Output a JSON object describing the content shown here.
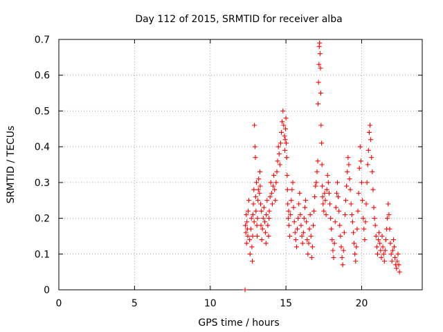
{
  "chart_data": {
    "type": "scatter",
    "title": "Day 112 of 2015, SRMTID for receiver alba",
    "xlabel": "GPS time / hours",
    "ylabel": "SRMTID / TECUs",
    "xlim": [
      0,
      24
    ],
    "ylim": [
      0,
      0.7
    ],
    "xticks": [
      0,
      5,
      10,
      15,
      20
    ],
    "xtick_labels": [
      "0",
      "5",
      "10",
      "15",
      "20"
    ],
    "yticks": [
      0,
      0.1,
      0.2,
      0.3,
      0.4,
      0.5,
      0.6,
      0.7
    ],
    "ytick_labels": [
      "0",
      "0.1",
      "0.2",
      "0.3",
      "0.4",
      "0.5",
      "0.6",
      "0.7"
    ],
    "grid": true,
    "marker": "+",
    "series": [
      {
        "name": "SRMTID",
        "color": "#ff0000",
        "x": [
          12.3,
          12.32,
          12.35,
          12.38,
          12.4,
          12.42,
          12.45,
          12.48,
          12.5,
          12.55,
          12.6,
          12.63,
          12.68,
          12.72,
          12.75,
          12.78,
          12.8,
          12.82,
          12.85,
          12.88,
          12.9,
          12.92,
          12.95,
          12.98,
          13.0,
          13.02,
          13.05,
          13.08,
          13.1,
          13.12,
          13.15,
          13.18,
          13.2,
          13.25,
          13.28,
          13.3,
          13.33,
          13.35,
          13.38,
          13.4,
          13.45,
          13.5,
          13.55,
          13.6,
          13.65,
          13.68,
          13.7,
          13.75,
          13.8,
          13.85,
          13.88,
          13.9,
          13.95,
          14.0,
          14.05,
          14.1,
          14.15,
          14.2,
          14.25,
          14.3,
          14.35,
          14.4,
          14.45,
          14.5,
          14.55,
          14.6,
          14.65,
          14.7,
          14.75,
          14.8,
          14.85,
          14.9,
          14.93,
          14.95,
          14.97,
          15.0,
          15.02,
          15.05,
          15.08,
          15.1,
          15.12,
          15.15,
          15.18,
          15.2,
          15.25,
          15.3,
          15.35,
          15.4,
          15.45,
          15.5,
          15.55,
          15.6,
          15.65,
          15.7,
          15.75,
          15.8,
          15.85,
          15.9,
          15.95,
          16.0,
          16.05,
          16.1,
          16.15,
          16.2,
          16.25,
          16.3,
          16.35,
          16.4,
          16.45,
          16.5,
          16.55,
          16.6,
          16.65,
          16.7,
          16.75,
          16.8,
          16.85,
          16.9,
          16.95,
          17.0,
          17.05,
          17.1,
          17.12,
          17.15,
          17.18,
          17.2,
          17.22,
          17.25,
          17.28,
          17.3,
          17.32,
          17.35,
          17.38,
          17.4,
          17.42,
          17.45,
          17.5,
          17.55,
          17.6,
          17.65,
          17.7,
          17.75,
          17.8,
          17.85,
          17.9,
          17.95,
          18.0,
          18.05,
          18.1,
          18.15,
          18.2,
          18.25,
          18.3,
          18.35,
          18.4,
          18.45,
          18.5,
          18.55,
          18.6,
          18.65,
          18.7,
          18.75,
          18.8,
          18.85,
          18.9,
          18.95,
          19.0,
          19.05,
          19.1,
          19.15,
          19.2,
          19.25,
          19.3,
          19.35,
          19.4,
          19.45,
          19.5,
          19.55,
          19.6,
          19.65,
          19.7,
          19.75,
          19.8,
          19.85,
          19.9,
          19.95,
          20.0,
          20.05,
          20.1,
          20.15,
          20.2,
          20.25,
          20.3,
          20.35,
          20.4,
          20.45,
          20.5,
          20.55,
          20.6,
          20.65,
          20.7,
          20.75,
          20.8,
          20.85,
          20.9,
          20.95,
          21.0,
          21.05,
          21.1,
          21.15,
          21.2,
          21.25,
          21.3,
          21.35,
          21.4,
          21.45,
          21.5,
          21.55,
          21.6,
          21.65,
          21.7,
          21.75,
          21.8,
          21.85,
          21.9,
          21.95,
          22.0,
          22.05,
          22.1,
          22.15,
          22.2,
          22.25,
          22.3,
          22.35,
          22.4,
          22.45,
          22.5
        ],
        "y": [
          0.0,
          0.18,
          0.16,
          0.21,
          0.13,
          0.19,
          0.17,
          0.15,
          0.22,
          0.25,
          0.14,
          0.1,
          0.17,
          0.2,
          0.12,
          0.08,
          0.15,
          0.21,
          0.24,
          0.28,
          0.19,
          0.46,
          0.4,
          0.37,
          0.26,
          0.22,
          0.3,
          0.18,
          0.15,
          0.2,
          0.25,
          0.28,
          0.31,
          0.27,
          0.33,
          0.29,
          0.24,
          0.18,
          0.22,
          0.14,
          0.17,
          0.2,
          0.23,
          0.19,
          0.16,
          0.13,
          0.21,
          0.25,
          0.18,
          0.15,
          0.2,
          0.22,
          0.26,
          0.3,
          0.27,
          0.24,
          0.29,
          0.32,
          0.28,
          0.25,
          0.3,
          0.33,
          0.36,
          0.4,
          0.38,
          0.35,
          0.41,
          0.44,
          0.47,
          0.5,
          0.46,
          0.43,
          0.39,
          0.42,
          0.45,
          0.48,
          0.41,
          0.37,
          0.32,
          0.28,
          0.24,
          0.2,
          0.22,
          0.18,
          0.15,
          0.21,
          0.25,
          0.28,
          0.3,
          0.23,
          0.19,
          0.16,
          0.14,
          0.12,
          0.17,
          0.2,
          0.24,
          0.27,
          0.21,
          0.18,
          0.15,
          0.13,
          0.16,
          0.2,
          0.23,
          0.25,
          0.19,
          0.14,
          0.1,
          0.13,
          0.17,
          0.21,
          0.15,
          0.09,
          0.12,
          0.18,
          0.22,
          0.26,
          0.29,
          0.3,
          0.33,
          0.36,
          0.52,
          0.58,
          0.63,
          0.68,
          0.69,
          0.66,
          0.62,
          0.55,
          0.46,
          0.41,
          0.35,
          0.29,
          0.26,
          0.24,
          0.22,
          0.27,
          0.25,
          0.21,
          0.28,
          0.32,
          0.3,
          0.27,
          0.24,
          0.2,
          0.17,
          0.14,
          0.11,
          0.09,
          0.13,
          0.19,
          0.23,
          0.27,
          0.3,
          0.26,
          0.22,
          0.18,
          0.15,
          0.12,
          0.09,
          0.07,
          0.11,
          0.16,
          0.21,
          0.25,
          0.29,
          0.33,
          0.37,
          0.35,
          0.31,
          0.28,
          0.24,
          0.21,
          0.19,
          0.16,
          0.13,
          0.1,
          0.08,
          0.12,
          0.17,
          0.22,
          0.27,
          0.34,
          0.4,
          0.36,
          0.3,
          0.25,
          0.2,
          0.17,
          0.14,
          0.19,
          0.24,
          0.3,
          0.35,
          0.39,
          0.44,
          0.46,
          0.42,
          0.37,
          0.33,
          0.28,
          0.23,
          0.2,
          0.18,
          0.15,
          0.12,
          0.1,
          0.14,
          0.16,
          0.13,
          0.11,
          0.09,
          0.15,
          0.12,
          0.1,
          0.08,
          0.11,
          0.14,
          0.17,
          0.2,
          0.24,
          0.21,
          0.17,
          0.13,
          0.1,
          0.08,
          0.11,
          0.14,
          0.12,
          0.09,
          0.07,
          0.06,
          0.08,
          0.1,
          0.07,
          0.05
        ]
      }
    ]
  }
}
